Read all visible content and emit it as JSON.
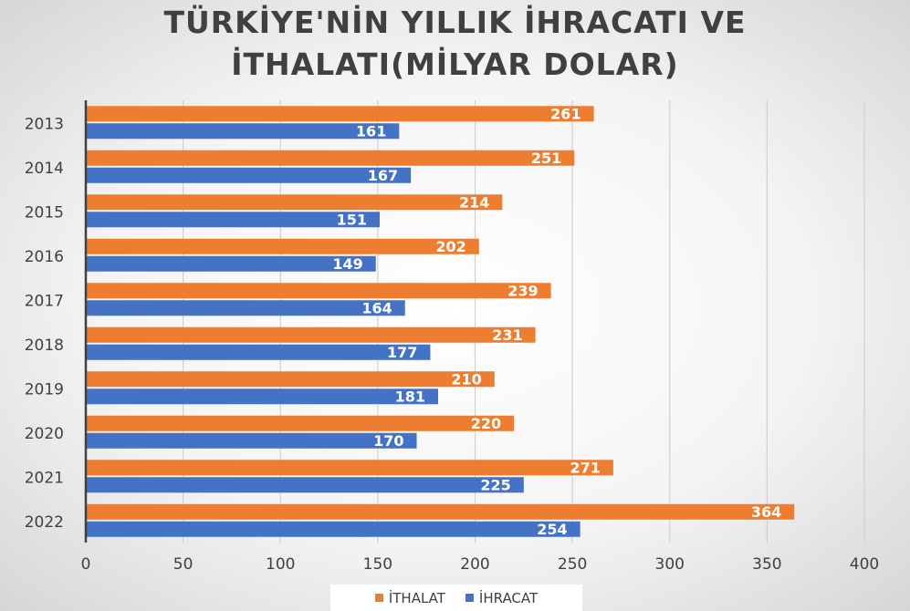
{
  "chart_data": {
    "type": "bar",
    "orientation": "horizontal",
    "title_lines": [
      "TÜRKİYE'NİN YILLIK İHRACATI VE",
      "İTHALATI(MİLYAR DOLAR)"
    ],
    "categories": [
      "2013",
      "2014",
      "2015",
      "2016",
      "2017",
      "2018",
      "2019",
      "2020",
      "2021",
      "2022"
    ],
    "series": [
      {
        "name": "İTHALAT",
        "color": "#ED7D31",
        "values": [
          261,
          251,
          214,
          202,
          239,
          231,
          210,
          220,
          271,
          364
        ]
      },
      {
        "name": "İHRACAT",
        "color": "#4472C4",
        "values": [
          161,
          167,
          151,
          149,
          164,
          177,
          181,
          170,
          225,
          254
        ]
      }
    ],
    "xlim": [
      0,
      400
    ],
    "xticks": [
      0,
      50,
      100,
      150,
      200,
      250,
      300,
      350,
      400
    ],
    "grid": true,
    "legend_position": "bottom",
    "data_labels": true
  }
}
